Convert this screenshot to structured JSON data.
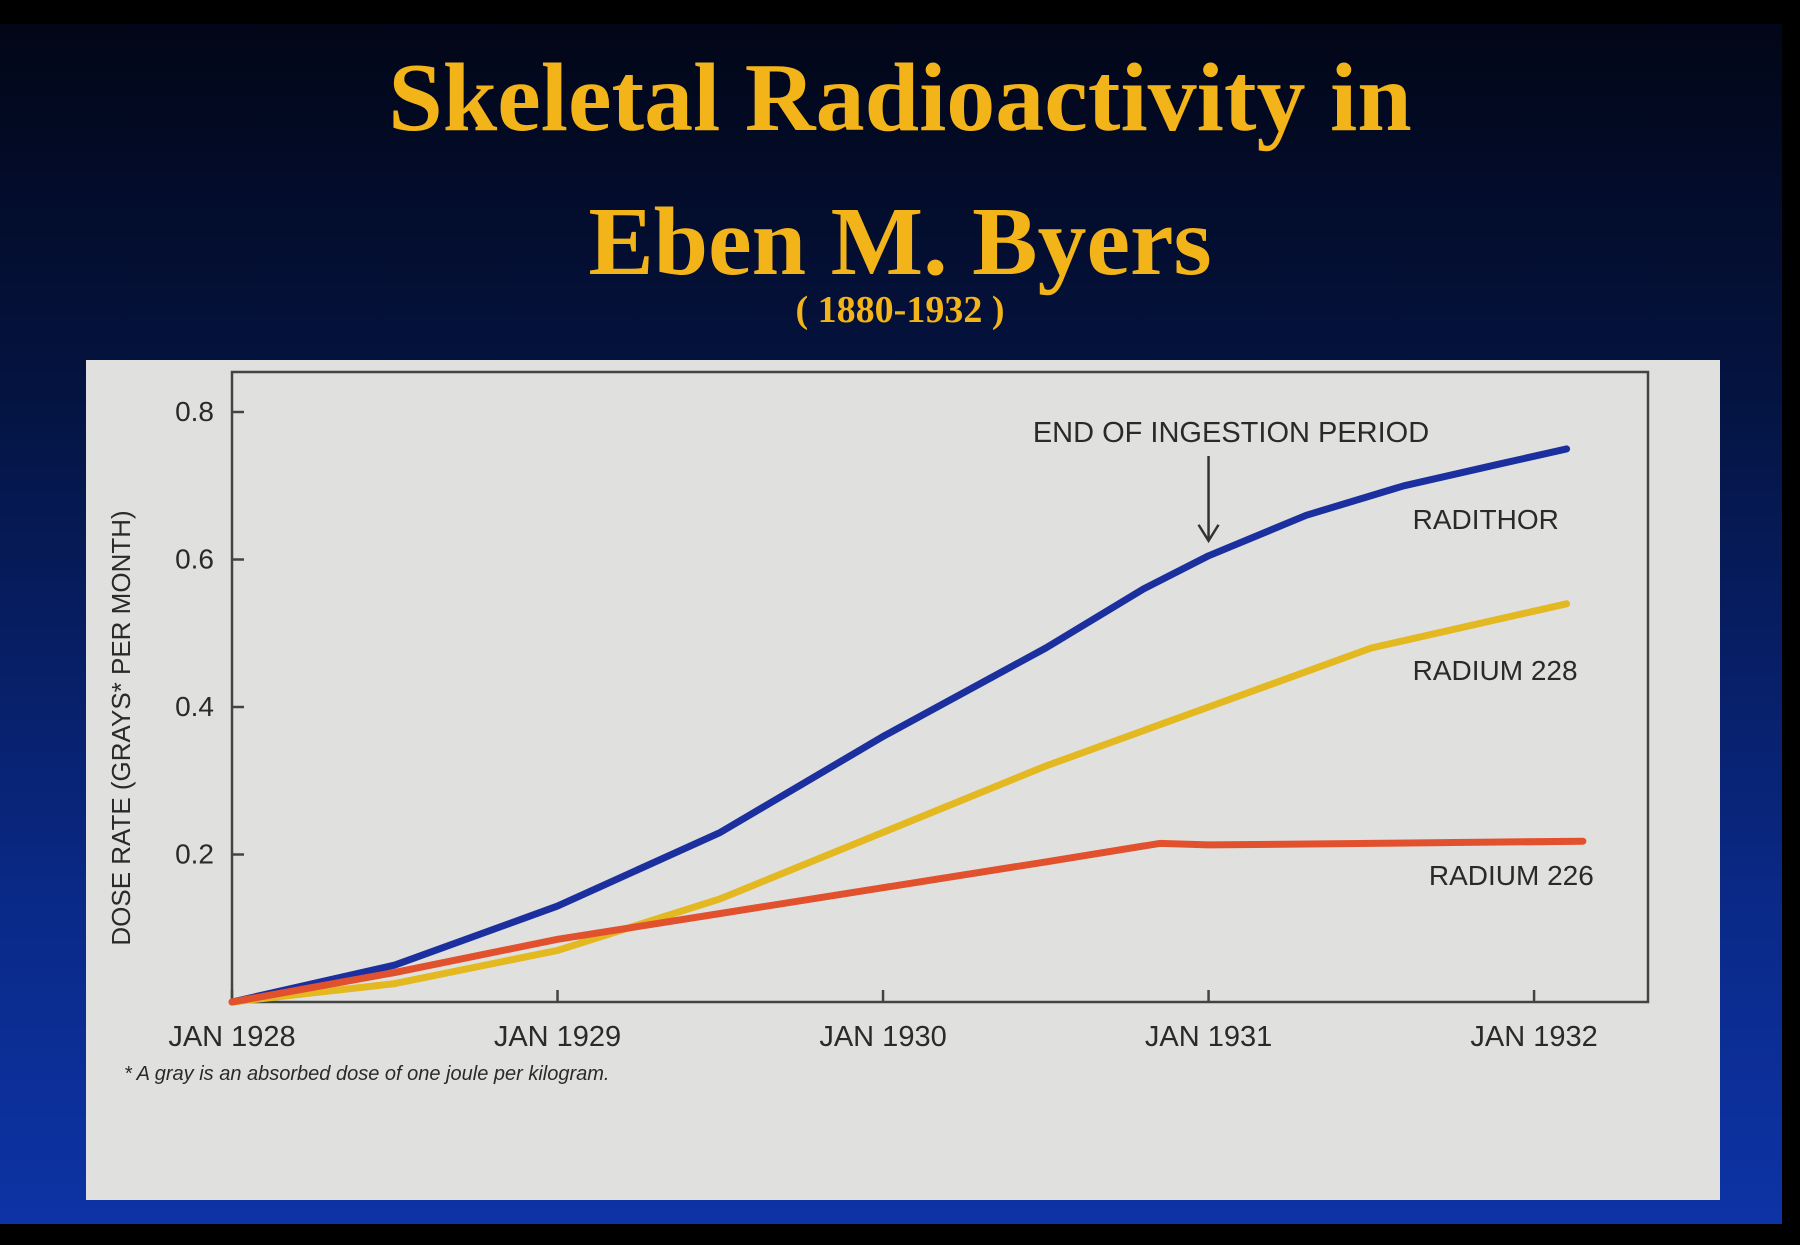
{
  "slide": {
    "title_line1": "Skeletal Radioactivity in",
    "title_line2": "Eben M. Byers",
    "subtitle": "( 1880-1932 )",
    "background_color": "#041340",
    "title_color": "#f3b41a",
    "panel_color": "#e0e1df"
  },
  "chart_data": {
    "type": "line",
    "ylabel": "DOSE RATE (GRAYS* PER MONTH)",
    "xlabel": "",
    "footnote": "* A gray is an absorbed dose of one joule per kilogram.",
    "x_ticks": [
      "JAN 1928",
      "JAN 1929",
      "JAN 1930",
      "JAN 1931",
      "JAN 1932"
    ],
    "y_ticks": [
      "0.2",
      "0.4",
      "0.6",
      "0.8"
    ],
    "ylim": [
      0,
      0.8
    ],
    "xlim": [
      1928.0,
      1932.35
    ],
    "annotation": {
      "text": "END OF INGESTION PERIOD",
      "x": 1931.0,
      "y": 0.62
    },
    "series": [
      {
        "name": "RADITHOR",
        "color": "#1c2f9e",
        "x": [
          1928.0,
          1928.5,
          1929.0,
          1929.5,
          1930.0,
          1930.5,
          1930.8,
          1931.0,
          1931.3,
          1931.6,
          1931.9,
          1932.1
        ],
        "y": [
          0.0,
          0.05,
          0.13,
          0.23,
          0.36,
          0.48,
          0.56,
          0.605,
          0.66,
          0.7,
          0.73,
          0.75
        ]
      },
      {
        "name": "RADIUM 228",
        "color": "#e3b820",
        "x": [
          1928.0,
          1928.5,
          1929.0,
          1929.5,
          1930.0,
          1930.5,
          1931.0,
          1931.5,
          1932.1
        ],
        "y": [
          0.0,
          0.025,
          0.07,
          0.14,
          0.23,
          0.32,
          0.4,
          0.48,
          0.54
        ]
      },
      {
        "name": "RADIUM 226",
        "color": "#e2512e",
        "x": [
          1928.0,
          1928.5,
          1929.0,
          1929.5,
          1930.0,
          1930.5,
          1930.85,
          1931.0,
          1931.5,
          1932.15
        ],
        "y": [
          0.0,
          0.04,
          0.085,
          0.12,
          0.155,
          0.19,
          0.215,
          0.213,
          0.215,
          0.218
        ]
      }
    ]
  }
}
